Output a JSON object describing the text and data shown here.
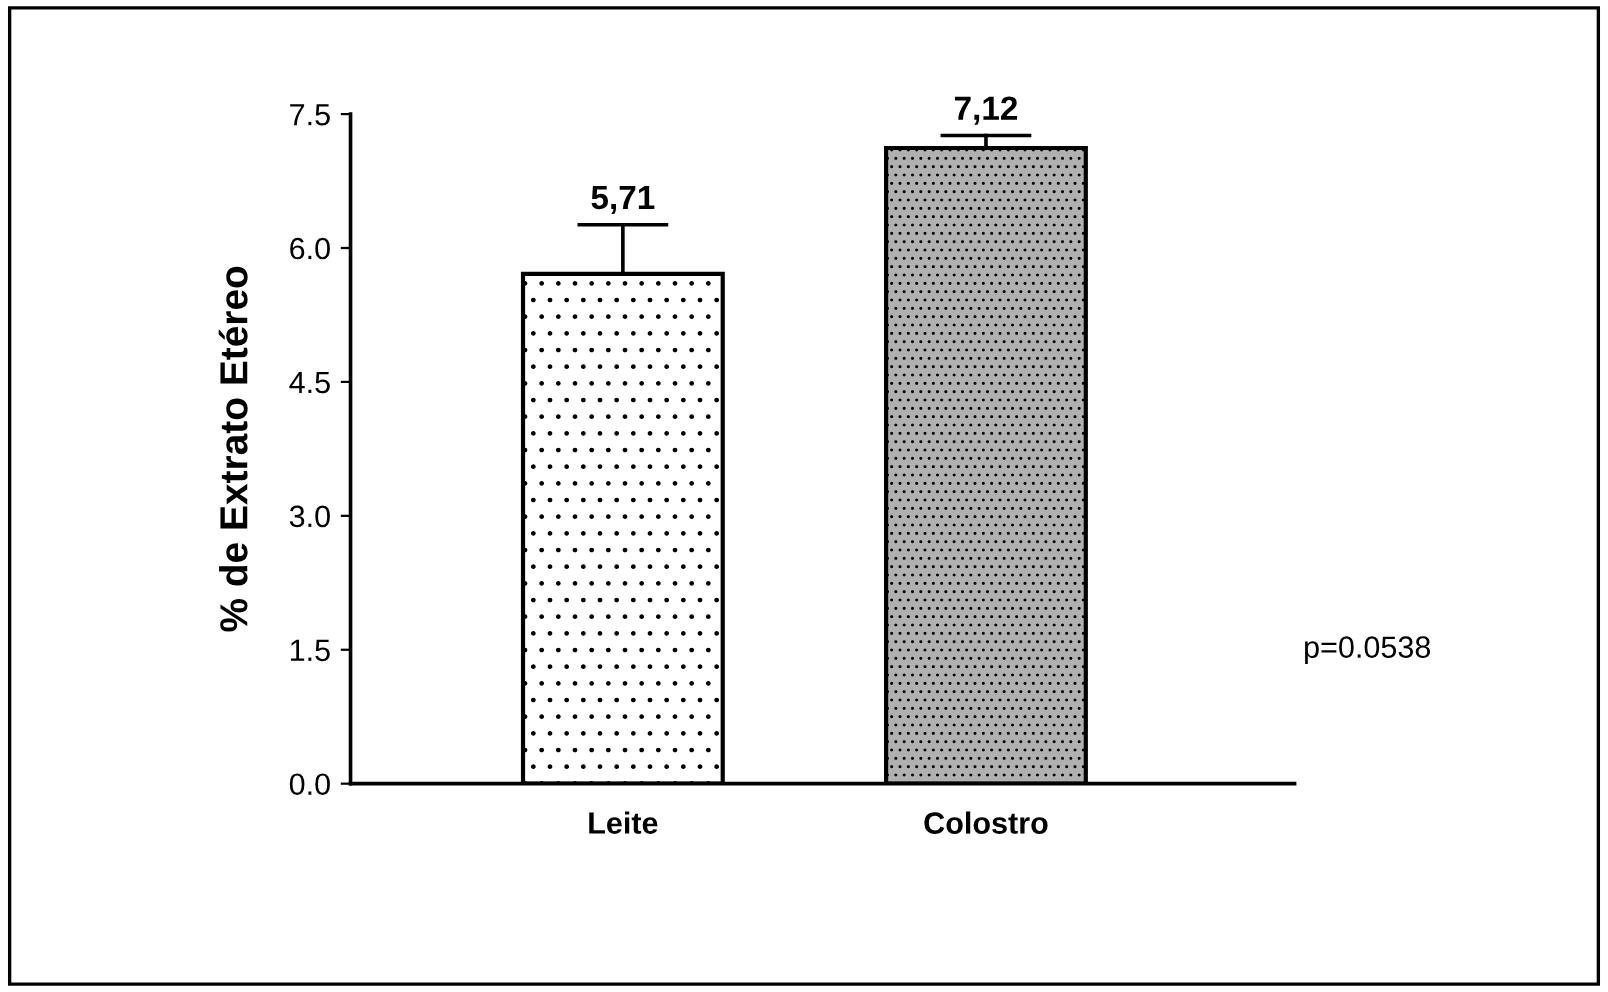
{
  "chart_data": {
    "type": "bar",
    "ylabel": "% de Extrato Etéreo",
    "categories": [
      "Leite",
      "Colostro"
    ],
    "values": [
      5.71,
      7.12
    ],
    "colors": [
      "#ffffff",
      "#b0b0b0"
    ],
    "errors": [
      [
        5.71,
        6.26
      ],
      [
        7.12,
        7.26
      ]
    ],
    "value_labels": [
      "5,71",
      "7,12"
    ],
    "ylim": [
      0,
      7.5
    ],
    "yticks": [
      {
        "value": 0,
        "label": "0.0"
      },
      {
        "value": 1.5,
        "label": "1.5"
      },
      {
        "value": 3,
        "label": "3.0"
      },
      {
        "value": 4.5,
        "label": "4.5"
      },
      {
        "value": 6,
        "label": "6.0"
      },
      {
        "value": 7.5,
        "label": "7.5"
      }
    ],
    "grid": false,
    "legend": false,
    "annotations": [
      "p=0.0538"
    ]
  }
}
